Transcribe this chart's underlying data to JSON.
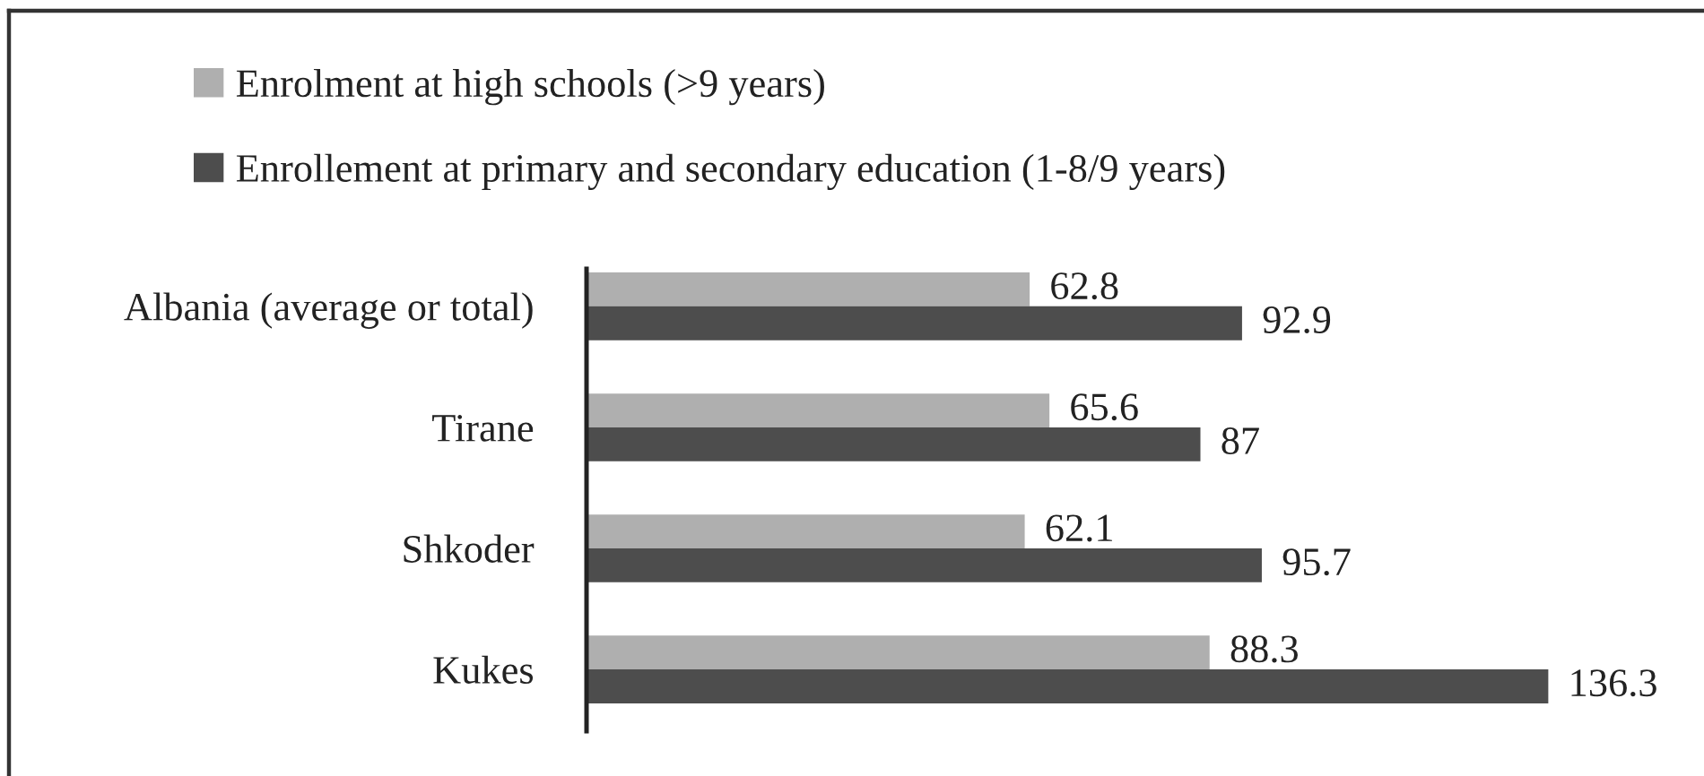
{
  "chart_data": {
    "type": "bar",
    "orientation": "horizontal",
    "categories": [
      "Albania (average or total)",
      "Tirane",
      "Shkoder",
      "Kukes"
    ],
    "series": [
      {
        "name": "Enrolment at high schools (>9 years)",
        "color": "#afafaf",
        "values": [
          62.8,
          65.6,
          62.1,
          88.3
        ]
      },
      {
        "name": "Enrollement at primary and secondary education (1-8/9 years)",
        "color": "#4d4d4d",
        "values": [
          92.9,
          87,
          95.7,
          136.3
        ]
      }
    ],
    "tick_labels": "y",
    "data_labels": true,
    "legend": "top left"
  }
}
